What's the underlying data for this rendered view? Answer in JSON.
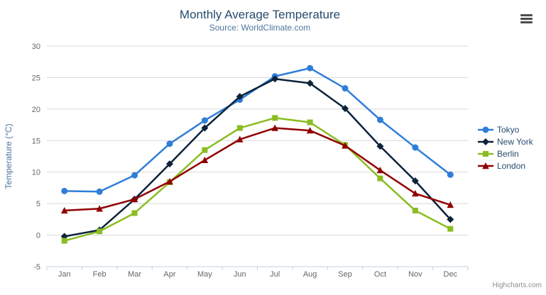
{
  "header": {
    "menu_icon": "hamburger"
  },
  "credits": {
    "label": "Highcharts.com"
  },
  "chart_data": {
    "type": "line",
    "title": "Monthly Average Temperature",
    "subtitle": "Source: WorldClimate.com",
    "xlabel": "",
    "ylabel": "Temperature (°C)",
    "ylim": [
      -5,
      30
    ],
    "ytick_step": 5,
    "grid": true,
    "legend_position": "right",
    "categories": [
      "Jan",
      "Feb",
      "Mar",
      "Apr",
      "May",
      "Jun",
      "Jul",
      "Aug",
      "Sep",
      "Oct",
      "Nov",
      "Dec"
    ],
    "series": [
      {
        "name": "Tokyo",
        "color": "#2f7ed8",
        "marker": "circle",
        "values": [
          7.0,
          6.9,
          9.5,
          14.5,
          18.2,
          21.5,
          25.2,
          26.5,
          23.3,
          18.3,
          13.9,
          9.6
        ]
      },
      {
        "name": "New York",
        "color": "#0d233a",
        "marker": "diamond",
        "values": [
          -0.2,
          0.8,
          5.7,
          11.3,
          17.0,
          22.0,
          24.8,
          24.1,
          20.1,
          14.1,
          8.6,
          2.5
        ]
      },
      {
        "name": "Berlin",
        "color": "#8bbc21",
        "marker": "square",
        "values": [
          -0.9,
          0.6,
          3.5,
          8.4,
          13.5,
          17.0,
          18.6,
          17.9,
          14.3,
          9.0,
          3.9,
          1.0
        ]
      },
      {
        "name": "London",
        "color": "#910000",
        "marker": "triangle",
        "values": [
          3.9,
          4.2,
          5.7,
          8.5,
          11.9,
          15.2,
          17.0,
          16.6,
          14.2,
          10.3,
          6.6,
          4.8
        ]
      }
    ],
    "colors": {
      "grid_line": "#d8d8d8",
      "axis_line": "#c0d0e0",
      "tick_mark": "#c0d0e0",
      "tick_label": "#666666",
      "title": "#274b6d",
      "subtitle": "#4d759e",
      "axis_title": "#4d759e",
      "legend_text": "#274b6d"
    }
  }
}
